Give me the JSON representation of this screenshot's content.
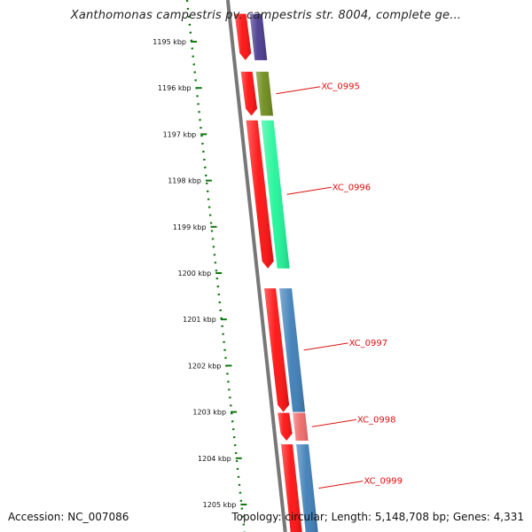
{
  "title": "Xanthomonas campestris pv. campestris str. 8004, complete ge...",
  "footer": {
    "accession": "Accession: NC_007086",
    "summary": "Topology: circular; Length: 5,148,708 bp; Genes: 4,331"
  },
  "ruler": {
    "ticks": [
      1195,
      1196,
      1197,
      1198,
      1199,
      1200,
      1201,
      1202,
      1203,
      1204,
      1205
    ],
    "unit": "kbp",
    "tick_color": "#117711"
  },
  "tracks": {
    "reverse_color": "#ff1111",
    "backbone_color": "#777777",
    "features": [
      {
        "id": "f0",
        "start": 1194.4,
        "end": 1195.4,
        "label": "",
        "color": "#4b3b8f"
      },
      {
        "id": "f1",
        "start": 1195.65,
        "end": 1196.6,
        "label": "XC_0995",
        "color": "#6f8c1c"
      },
      {
        "id": "f2",
        "start": 1196.7,
        "end": 1199.9,
        "label": "XC_0996",
        "color": "#22f59a"
      },
      {
        "id": "f3",
        "start": 1200.33,
        "end": 1203.0,
        "label": "XC_0997",
        "color": "#3f7fb8"
      },
      {
        "id": "f4",
        "start": 1203.02,
        "end": 1203.62,
        "label": "XC_0998",
        "color": "#f06b6b"
      },
      {
        "id": "f5",
        "start": 1203.7,
        "end": 1205.7,
        "label": "XC_0999",
        "color": "#3f7fb8"
      }
    ],
    "reverse_genes": [
      {
        "start": 1194.4,
        "end": 1195.4
      },
      {
        "start": 1195.65,
        "end": 1196.6
      },
      {
        "start": 1196.7,
        "end": 1199.9
      },
      {
        "start": 1200.33,
        "end": 1203.0
      },
      {
        "start": 1203.02,
        "end": 1203.62
      },
      {
        "start": 1203.7,
        "end": 1205.7
      }
    ]
  },
  "label_color": "#dd1111"
}
